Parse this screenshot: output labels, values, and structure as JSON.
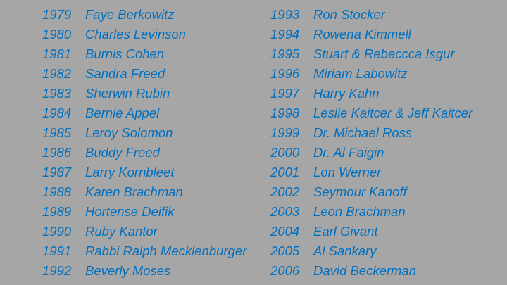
{
  "text_color": "#0070c0",
  "background_color": "#a6a6a6",
  "left_column": [
    {
      "year": "1979",
      "name": "Faye Berkowitz"
    },
    {
      "year": "1980",
      "name": "Charles Levinson"
    },
    {
      "year": "1981",
      "name": "Burnis Cohen"
    },
    {
      "year": "1982",
      "name": "Sandra Freed"
    },
    {
      "year": "1983",
      "name": "Sherwin Rubin"
    },
    {
      "year": "1984",
      "name": "Bernie Appel"
    },
    {
      "year": "1985",
      "name": "Leroy Solomon"
    },
    {
      "year": "1986",
      "name": "Buddy Freed"
    },
    {
      "year": "1987",
      "name": "Larry Kornbleet"
    },
    {
      "year": "1988",
      "name": "Karen Brachman"
    },
    {
      "year": "1989",
      "name": "Hortense Deifik"
    },
    {
      "year": "1990",
      "name": "Ruby Kantor"
    },
    {
      "year": "1991",
      "name": "Rabbi Ralph Mecklenburger"
    },
    {
      "year": "1992",
      "name": "Beverly Moses"
    }
  ],
  "right_column": [
    {
      "year": "1993",
      "name": "Ron Stocker"
    },
    {
      "year": "1994",
      "name": "Rowena Kimmell"
    },
    {
      "year": "1995",
      "name": "Stuart & Rebeccca Isgur"
    },
    {
      "year": "1996",
      "name": "Miriam Labowitz"
    },
    {
      "year": "1997",
      "name": "Harry Kahn"
    },
    {
      "year": "1998",
      "name": "Leslie Kaitcer & Jeff Kaitcer"
    },
    {
      "year": "1999",
      "name": "Dr. Michael Ross"
    },
    {
      "year": "2000",
      "name": "Dr. Al Faigin"
    },
    {
      "year": "2001",
      "name": "Lon Werner"
    },
    {
      "year": "2002",
      "name": "Seymour Kanoff"
    },
    {
      "year": "2003",
      "name": "Leon Brachman"
    },
    {
      "year": "2004",
      "name": "Earl Givant"
    },
    {
      "year": "2005",
      "name": "Al Sankary"
    },
    {
      "year": "2006",
      "name": "David Beckerman"
    }
  ]
}
